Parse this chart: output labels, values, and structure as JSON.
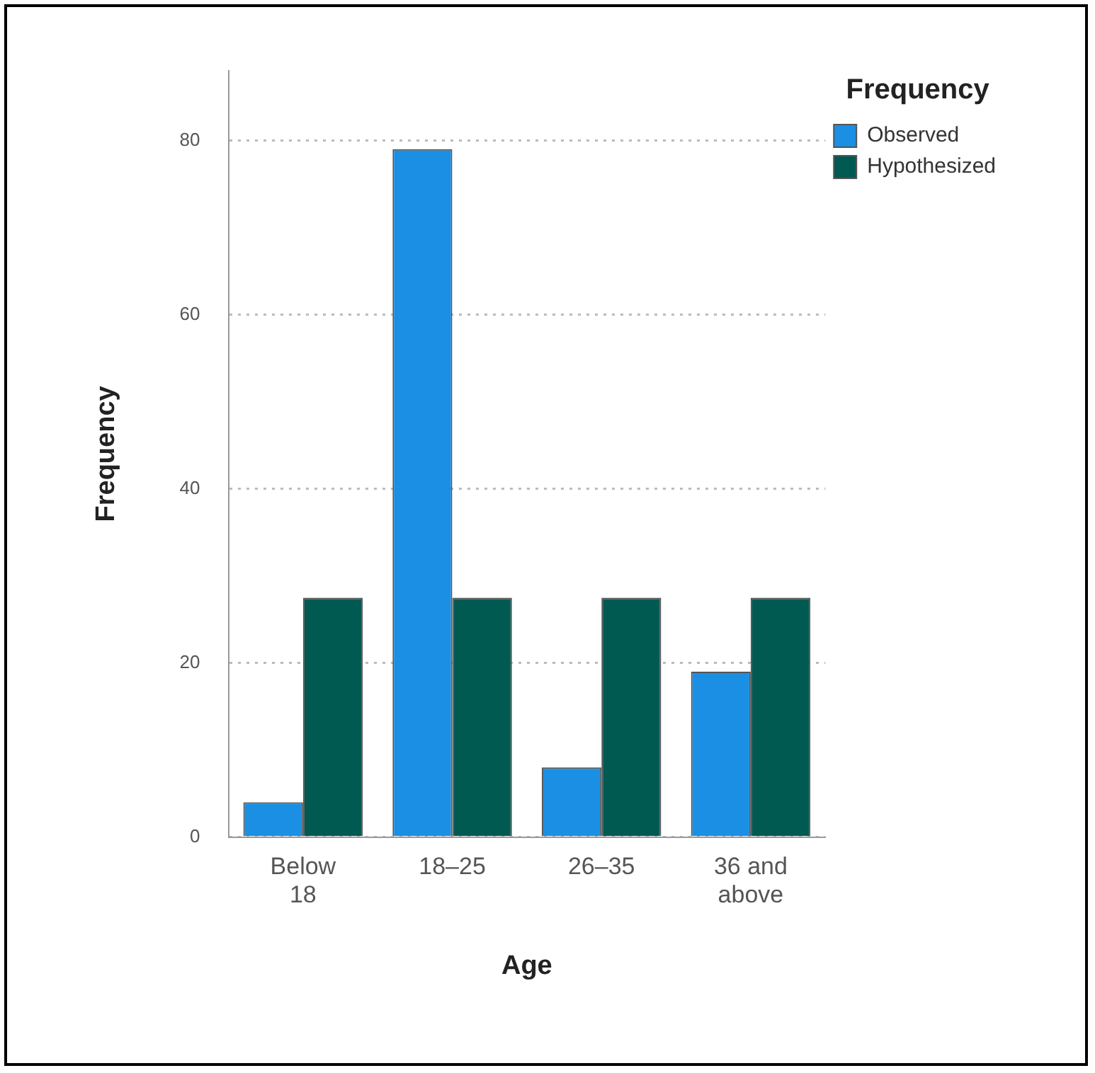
{
  "chart_data": {
    "type": "bar",
    "xlabel": "Age",
    "ylabel": "Frequency",
    "legend_title": "Frequency",
    "categories": [
      "Below 18",
      "18–25",
      "26–35",
      "36 and above"
    ],
    "series": [
      {
        "name": "Observed",
        "color": "#1a8fe3",
        "values": [
          4,
          79,
          8,
          19
        ]
      },
      {
        "name": "Hypothesized",
        "color": "#005a52",
        "values": [
          27.5,
          27.5,
          27.5,
          27.5
        ]
      }
    ],
    "ylim": [
      0,
      88
    ],
    "yticks": [
      0,
      20,
      40,
      60,
      80
    ],
    "grid": "y",
    "legend": "top right"
  }
}
